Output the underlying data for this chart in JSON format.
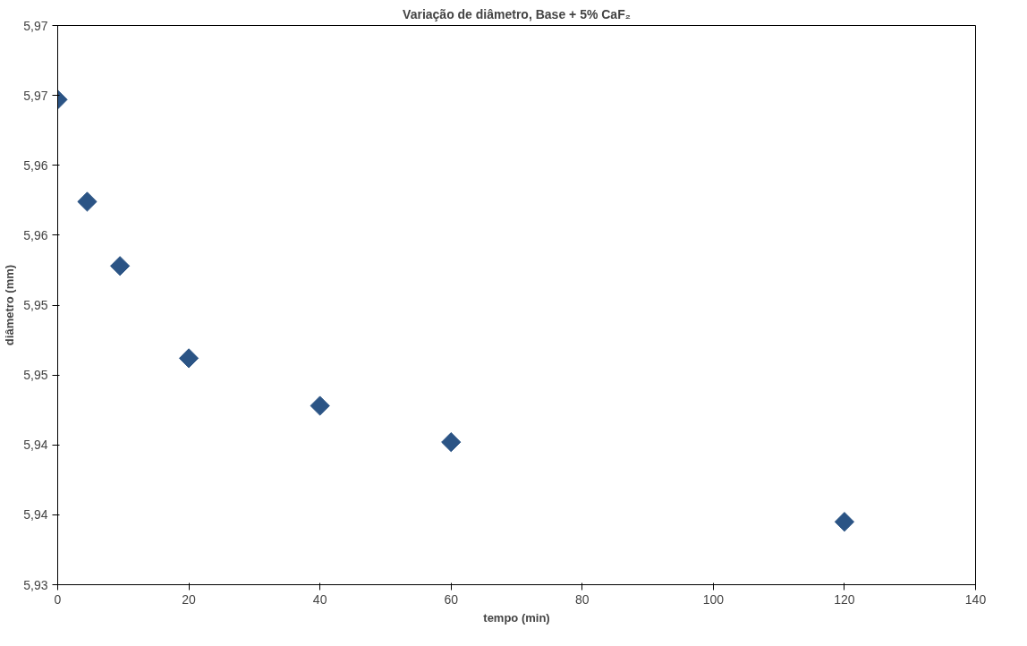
{
  "chart_data": {
    "type": "scatter",
    "title": "Variação de diâmetro, Base + 5% CaF₂",
    "xlabel": "tempo (min)",
    "ylabel": "diâmetro (mm)",
    "x": [
      0,
      4.5,
      9.5,
      20,
      40,
      60,
      120
    ],
    "series": [
      {
        "color": "#2b5485",
        "values": [
          5.9647,
          5.9574,
          5.9528,
          5.9462,
          5.9428,
          5.9402,
          5.9345
        ]
      }
    ],
    "xlim": [
      0,
      140
    ],
    "xticks": [
      0,
      20,
      40,
      60,
      80,
      100,
      120,
      140
    ],
    "ylim": [
      5.93,
      5.97
    ],
    "yticks": [
      {
        "value": 5.93,
        "label": "5,93"
      },
      {
        "value": 5.935,
        "label": "5,94"
      },
      {
        "value": 5.94,
        "label": "5,94"
      },
      {
        "value": 5.945,
        "label": "5,95"
      },
      {
        "value": 5.95,
        "label": "5,95"
      },
      {
        "value": 5.955,
        "label": "5,96"
      },
      {
        "value": 5.96,
        "label": "5,96"
      },
      {
        "value": 5.965,
        "label": "5,97"
      },
      {
        "value": 5.97,
        "label": "5,97"
      }
    ],
    "marker": "diamond",
    "grid": false
  }
}
